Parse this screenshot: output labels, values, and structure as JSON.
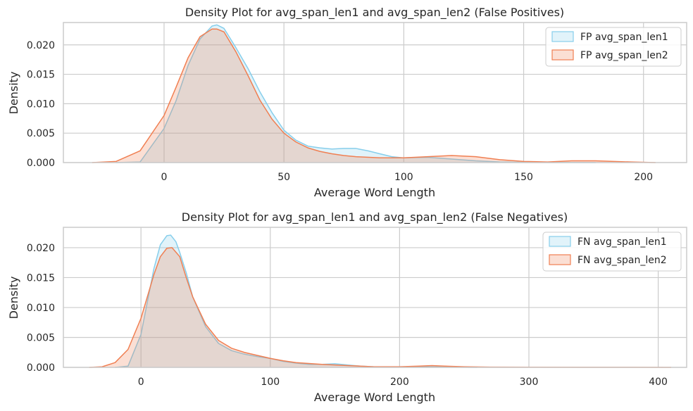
{
  "chart_data": [
    {
      "type": "area",
      "title": "Density Plot for avg_span_len1 and avg_span_len2 (False Positives)",
      "xlabel": "Average Word Length",
      "ylabel": "Density",
      "xlim": [
        -42,
        218
      ],
      "ylim": [
        0,
        0.0238
      ],
      "xticks": [
        0,
        50,
        100,
        150,
        200
      ],
      "xtick_labels": [
        "0",
        "50",
        "100",
        "150",
        "200"
      ],
      "yticks": [
        0,
        0.005,
        0.01,
        0.015,
        0.02
      ],
      "ytick_labels": [
        "0.000",
        "0.005",
        "0.010",
        "0.015",
        "0.020"
      ],
      "grid": true,
      "legend": "upper-right",
      "series": [
        {
          "name": "FP avg_span_len1",
          "line_color": "#87ceeb",
          "fill_color": "#87ceeb",
          "x": [
            -20,
            -10,
            0,
            5,
            10,
            15,
            20,
            22,
            25,
            30,
            35,
            40,
            45,
            50,
            55,
            60,
            65,
            70,
            75,
            80,
            85,
            90,
            95,
            100,
            110,
            120,
            130,
            140,
            150,
            160,
            170,
            180
          ],
          "y": [
            0,
            0.0001,
            0.0058,
            0.0105,
            0.0165,
            0.021,
            0.0232,
            0.0234,
            0.0228,
            0.0195,
            0.016,
            0.012,
            0.0085,
            0.0055,
            0.0038,
            0.0028,
            0.0025,
            0.0023,
            0.0024,
            0.0024,
            0.002,
            0.0015,
            0.001,
            0.0008,
            0.0009,
            0.0006,
            0.0003,
            0.0001,
            5e-05,
            2e-05,
            1e-05,
            0
          ]
        },
        {
          "name": "FP avg_span_len2",
          "line_color": "#f07f52",
          "fill_color": "#f07f52",
          "x": [
            -30,
            -20,
            -10,
            0,
            5,
            10,
            15,
            20,
            22,
            25,
            30,
            35,
            40,
            45,
            50,
            55,
            60,
            65,
            70,
            75,
            80,
            90,
            100,
            110,
            120,
            130,
            140,
            150,
            160,
            170,
            180,
            195,
            205
          ],
          "y": [
            0,
            0.0002,
            0.002,
            0.008,
            0.0128,
            0.0178,
            0.0214,
            0.0227,
            0.0227,
            0.0222,
            0.0188,
            0.0148,
            0.0106,
            0.0074,
            0.005,
            0.0035,
            0.0025,
            0.0019,
            0.0015,
            0.0012,
            0.001,
            0.0008,
            0.0008,
            0.001,
            0.0012,
            0.001,
            0.0005,
            0.0002,
            0.0001,
            0.0003,
            0.0003,
            0.0001,
            0
          ]
        }
      ]
    },
    {
      "type": "area",
      "title": "Density Plot for avg_span_len1 and avg_span_len2 (False Negatives)",
      "xlabel": "Average Word Length",
      "ylabel": "Density",
      "xlim": [
        -60,
        422
      ],
      "ylim": [
        0,
        0.0234
      ],
      "xticks": [
        0,
        100,
        200,
        300,
        400
      ],
      "xtick_labels": [
        "0",
        "100",
        "200",
        "300",
        "400"
      ],
      "yticks": [
        0,
        0.005,
        0.01,
        0.015,
        0.02
      ],
      "ytick_labels": [
        "0.000",
        "0.005",
        "0.010",
        "0.015",
        "0.020"
      ],
      "grid": true,
      "legend": "upper-right",
      "series": [
        {
          "name": "FN avg_span_len1",
          "line_color": "#87ceeb",
          "fill_color": "#87ceeb",
          "x": [
            -20,
            -10,
            0,
            10,
            15,
            20,
            23,
            27,
            30,
            35,
            40,
            50,
            60,
            70,
            80,
            90,
            100,
            110,
            120,
            130,
            140,
            150,
            160,
            170,
            180,
            200,
            220,
            240,
            260
          ],
          "y": [
            0,
            0.0002,
            0.0055,
            0.0165,
            0.0205,
            0.022,
            0.0221,
            0.021,
            0.0192,
            0.0158,
            0.0118,
            0.0068,
            0.004,
            0.0028,
            0.0022,
            0.0018,
            0.0015,
            0.001,
            0.0007,
            0.0005,
            0.0005,
            0.0006,
            0.0004,
            0.0002,
            0.0001,
            5e-05,
            0.0001,
            5e-05,
            0
          ]
        },
        {
          "name": "FN avg_span_len2",
          "line_color": "#f07f52",
          "fill_color": "#f07f52",
          "x": [
            -40,
            -30,
            -20,
            -10,
            0,
            10,
            15,
            20,
            24,
            30,
            35,
            40,
            50,
            60,
            70,
            80,
            90,
            100,
            110,
            120,
            140,
            160,
            180,
            200,
            215,
            225,
            235,
            250,
            270,
            300,
            340,
            380,
            410
          ],
          "y": [
            0,
            0.0001,
            0.0008,
            0.003,
            0.0082,
            0.0155,
            0.0185,
            0.0199,
            0.02,
            0.0185,
            0.015,
            0.0118,
            0.0072,
            0.0045,
            0.0032,
            0.0025,
            0.002,
            0.0015,
            0.0011,
            0.0008,
            0.0005,
            0.0003,
            0.0001,
            0.0001,
            0.0002,
            0.0003,
            0.0002,
            0.0001,
            5e-05,
            3e-05,
            2e-05,
            1e-05,
            0
          ]
        }
      ]
    }
  ]
}
